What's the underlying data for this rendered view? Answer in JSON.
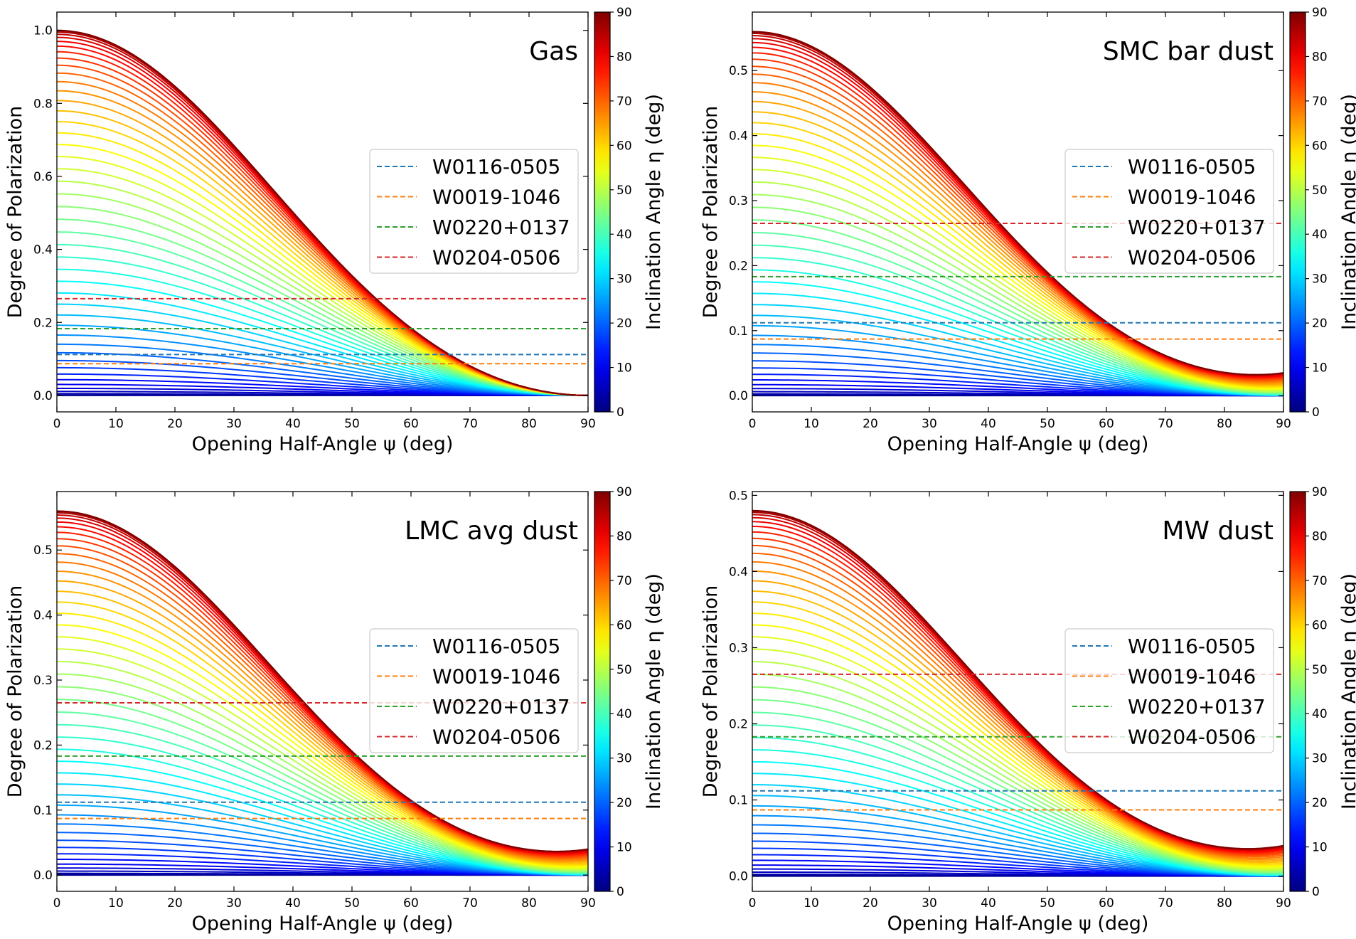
{
  "chart_data": [
    {
      "type": "line",
      "panel_label": "Gas",
      "xlabel": "Opening Half-Angle ψ (deg)",
      "ylabel": "Degree of Polarization",
      "colorbar_label": "Inclination Angle η (deg)",
      "xlim": [
        0,
        90
      ],
      "ylim": [
        -0.045,
        1.05
      ],
      "xticks": [
        "0",
        "10",
        "20",
        "30",
        "40",
        "50",
        "60",
        "70",
        "80",
        "90"
      ],
      "yticks": [
        "0.0",
        "0.2",
        "0.4",
        "0.6",
        "0.8",
        "1.0"
      ],
      "ytick_values": [
        0.0,
        0.2,
        0.4,
        0.6,
        0.8,
        1.0
      ],
      "colorbar_ticks": [
        "0",
        "10",
        "20",
        "30",
        "40",
        "50",
        "60",
        "70",
        "80",
        "90"
      ],
      "curve_family": {
        "parameter": "Inclination Angle η (deg)",
        "eta_values_deg": [
          0,
          2,
          4,
          6,
          8,
          10,
          12,
          14,
          16,
          18,
          20,
          22,
          24,
          26,
          28,
          30,
          32,
          34,
          36,
          38,
          40,
          42,
          44,
          46,
          48,
          50,
          52,
          54,
          56,
          58,
          60,
          62,
          64,
          66,
          68,
          70,
          72,
          74,
          76,
          78,
          80,
          82,
          84,
          86,
          88,
          90
        ],
        "p_at_psi0_for_eta90": 1.0,
        "p_at_psi90": 0.0,
        "colormap": "jet"
      },
      "hlines": [
        {
          "name": "W0116-0505",
          "value": 0.112,
          "color": "#1f77b4"
        },
        {
          "name": "W0019-1046",
          "value": 0.087,
          "color": "#ff7f0e"
        },
        {
          "name": "W0220+0137",
          "value": 0.183,
          "color": "#2ca02c"
        },
        {
          "name": "W0204-0506",
          "value": 0.265,
          "color": "#d62728"
        }
      ],
      "legend_position": "center-right"
    },
    {
      "type": "line",
      "panel_label": "SMC bar dust",
      "xlabel": "Opening Half-Angle ψ (deg)",
      "ylabel": "Degree of Polarization",
      "colorbar_label": "Inclination Angle η (deg)",
      "xlim": [
        0,
        90
      ],
      "ylim": [
        -0.025,
        0.59
      ],
      "xticks": [
        "0",
        "10",
        "20",
        "30",
        "40",
        "50",
        "60",
        "70",
        "80",
        "90"
      ],
      "yticks": [
        "0.0",
        "0.1",
        "0.2",
        "0.3",
        "0.4",
        "0.5"
      ],
      "ytick_values": [
        0.0,
        0.1,
        0.2,
        0.3,
        0.4,
        0.5
      ],
      "colorbar_ticks": [
        "0",
        "10",
        "20",
        "30",
        "40",
        "50",
        "60",
        "70",
        "80",
        "90"
      ],
      "curve_family": {
        "parameter": "Inclination Angle η (deg)",
        "eta_values_deg": [
          0,
          2,
          4,
          6,
          8,
          10,
          12,
          14,
          16,
          18,
          20,
          22,
          24,
          26,
          28,
          30,
          32,
          34,
          36,
          38,
          40,
          42,
          44,
          46,
          48,
          50,
          52,
          54,
          56,
          58,
          60,
          62,
          64,
          66,
          68,
          70,
          72,
          74,
          76,
          78,
          80,
          82,
          84,
          86,
          88,
          90
        ],
        "p_at_psi0_for_eta90": 0.56,
        "p_at_psi90_max": 0.035,
        "colormap": "jet"
      },
      "hlines": [
        {
          "name": "W0116-0505",
          "value": 0.112,
          "color": "#1f77b4"
        },
        {
          "name": "W0019-1046",
          "value": 0.087,
          "color": "#ff7f0e"
        },
        {
          "name": "W0220+0137",
          "value": 0.183,
          "color": "#2ca02c"
        },
        {
          "name": "W0204-0506",
          "value": 0.265,
          "color": "#d62728"
        }
      ],
      "legend_position": "center-right"
    },
    {
      "type": "line",
      "panel_label": "LMC avg dust",
      "xlabel": "Opening Half-Angle ψ (deg)",
      "ylabel": "Degree of Polarization",
      "colorbar_label": "Inclination Angle η (deg)",
      "xlim": [
        0,
        90
      ],
      "ylim": [
        -0.025,
        0.59
      ],
      "xticks": [
        "0",
        "10",
        "20",
        "30",
        "40",
        "50",
        "60",
        "70",
        "80",
        "90"
      ],
      "yticks": [
        "0.0",
        "0.1",
        "0.2",
        "0.3",
        "0.4",
        "0.5"
      ],
      "ytick_values": [
        0.0,
        0.1,
        0.2,
        0.3,
        0.4,
        0.5
      ],
      "colorbar_ticks": [
        "0",
        "10",
        "20",
        "30",
        "40",
        "50",
        "60",
        "70",
        "80",
        "90"
      ],
      "curve_family": {
        "parameter": "Inclination Angle η (deg)",
        "eta_values_deg": [
          0,
          2,
          4,
          6,
          8,
          10,
          12,
          14,
          16,
          18,
          20,
          22,
          24,
          26,
          28,
          30,
          32,
          34,
          36,
          38,
          40,
          42,
          44,
          46,
          48,
          50,
          52,
          54,
          56,
          58,
          60,
          62,
          64,
          66,
          68,
          70,
          72,
          74,
          76,
          78,
          80,
          82,
          84,
          86,
          88,
          90
        ],
        "p_at_psi0_for_eta90": 0.56,
        "p_at_psi90_max": 0.04,
        "colormap": "jet"
      },
      "hlines": [
        {
          "name": "W0116-0505",
          "value": 0.112,
          "color": "#1f77b4"
        },
        {
          "name": "W0019-1046",
          "value": 0.087,
          "color": "#ff7f0e"
        },
        {
          "name": "W0220+0137",
          "value": 0.183,
          "color": "#2ca02c"
        },
        {
          "name": "W0204-0506",
          "value": 0.265,
          "color": "#d62728"
        }
      ],
      "legend_position": "center-right"
    },
    {
      "type": "line",
      "panel_label": "MW dust",
      "xlabel": "Opening Half-Angle ψ (deg)",
      "ylabel": "Degree of Polarization",
      "colorbar_label": "Inclination Angle η (deg)",
      "xlim": [
        0,
        90
      ],
      "ylim": [
        -0.02,
        0.505
      ],
      "xticks": [
        "0",
        "10",
        "20",
        "30",
        "40",
        "50",
        "60",
        "70",
        "80",
        "90"
      ],
      "yticks": [
        "0.0",
        "0.1",
        "0.2",
        "0.3",
        "0.4",
        "0.5"
      ],
      "ytick_values": [
        0.0,
        0.1,
        0.2,
        0.3,
        0.4,
        0.5
      ],
      "colorbar_ticks": [
        "0",
        "10",
        "20",
        "30",
        "40",
        "50",
        "60",
        "70",
        "80",
        "90"
      ],
      "curve_family": {
        "parameter": "Inclination Angle η (deg)",
        "eta_values_deg": [
          0,
          2,
          4,
          6,
          8,
          10,
          12,
          14,
          16,
          18,
          20,
          22,
          24,
          26,
          28,
          30,
          32,
          34,
          36,
          38,
          40,
          42,
          44,
          46,
          48,
          50,
          52,
          54,
          56,
          58,
          60,
          62,
          64,
          66,
          68,
          70,
          72,
          74,
          76,
          78,
          80,
          82,
          84,
          86,
          88,
          90
        ],
        "p_at_psi0_for_eta90": 0.48,
        "p_at_psi90_max": 0.04,
        "colormap": "jet"
      },
      "hlines": [
        {
          "name": "W0116-0505",
          "value": 0.112,
          "color": "#1f77b4"
        },
        {
          "name": "W0019-1046",
          "value": 0.087,
          "color": "#ff7f0e"
        },
        {
          "name": "W0220+0137",
          "value": 0.183,
          "color": "#2ca02c"
        },
        {
          "name": "W0204-0506",
          "value": 0.265,
          "color": "#d62728"
        }
      ],
      "legend_position": "center-right"
    }
  ]
}
